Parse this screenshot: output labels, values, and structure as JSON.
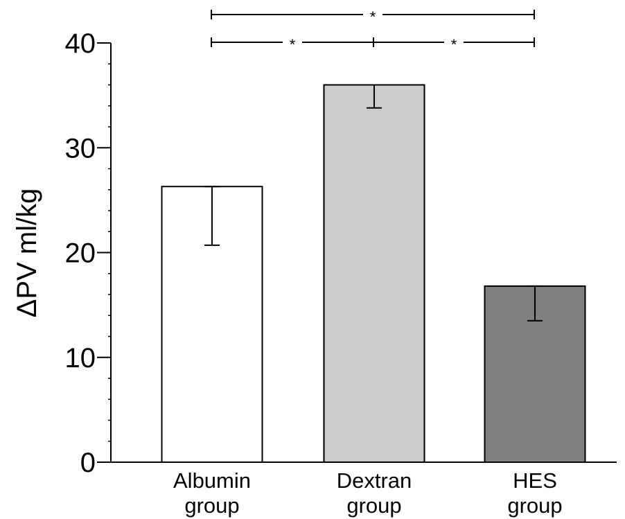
{
  "chart_data": {
    "type": "bar",
    "title": "",
    "xlabel": "",
    "ylabel": "ΔPV ml/kg",
    "ylim": [
      0,
      40
    ],
    "yticks": [
      0,
      10,
      20,
      30,
      40
    ],
    "grid": false,
    "categories": [
      [
        "Albumin",
        "group"
      ],
      [
        "Dextran",
        "group"
      ],
      [
        "HES",
        "group"
      ]
    ],
    "values": [
      26.3,
      36.0,
      16.8
    ],
    "error_lower": [
      20.7,
      33.8,
      13.5
    ],
    "error_upper": [
      26.3,
      36.0,
      16.8
    ],
    "bar_colors": [
      "#ffffff",
      "#cccccc",
      "#808080"
    ],
    "significance": [
      {
        "from": 0,
        "to": 2,
        "label": "*",
        "level": 2
      },
      {
        "from": 0,
        "to": 1,
        "label": "*",
        "level": 1
      },
      {
        "from": 1,
        "to": 2,
        "label": "*",
        "level": 1
      }
    ]
  }
}
